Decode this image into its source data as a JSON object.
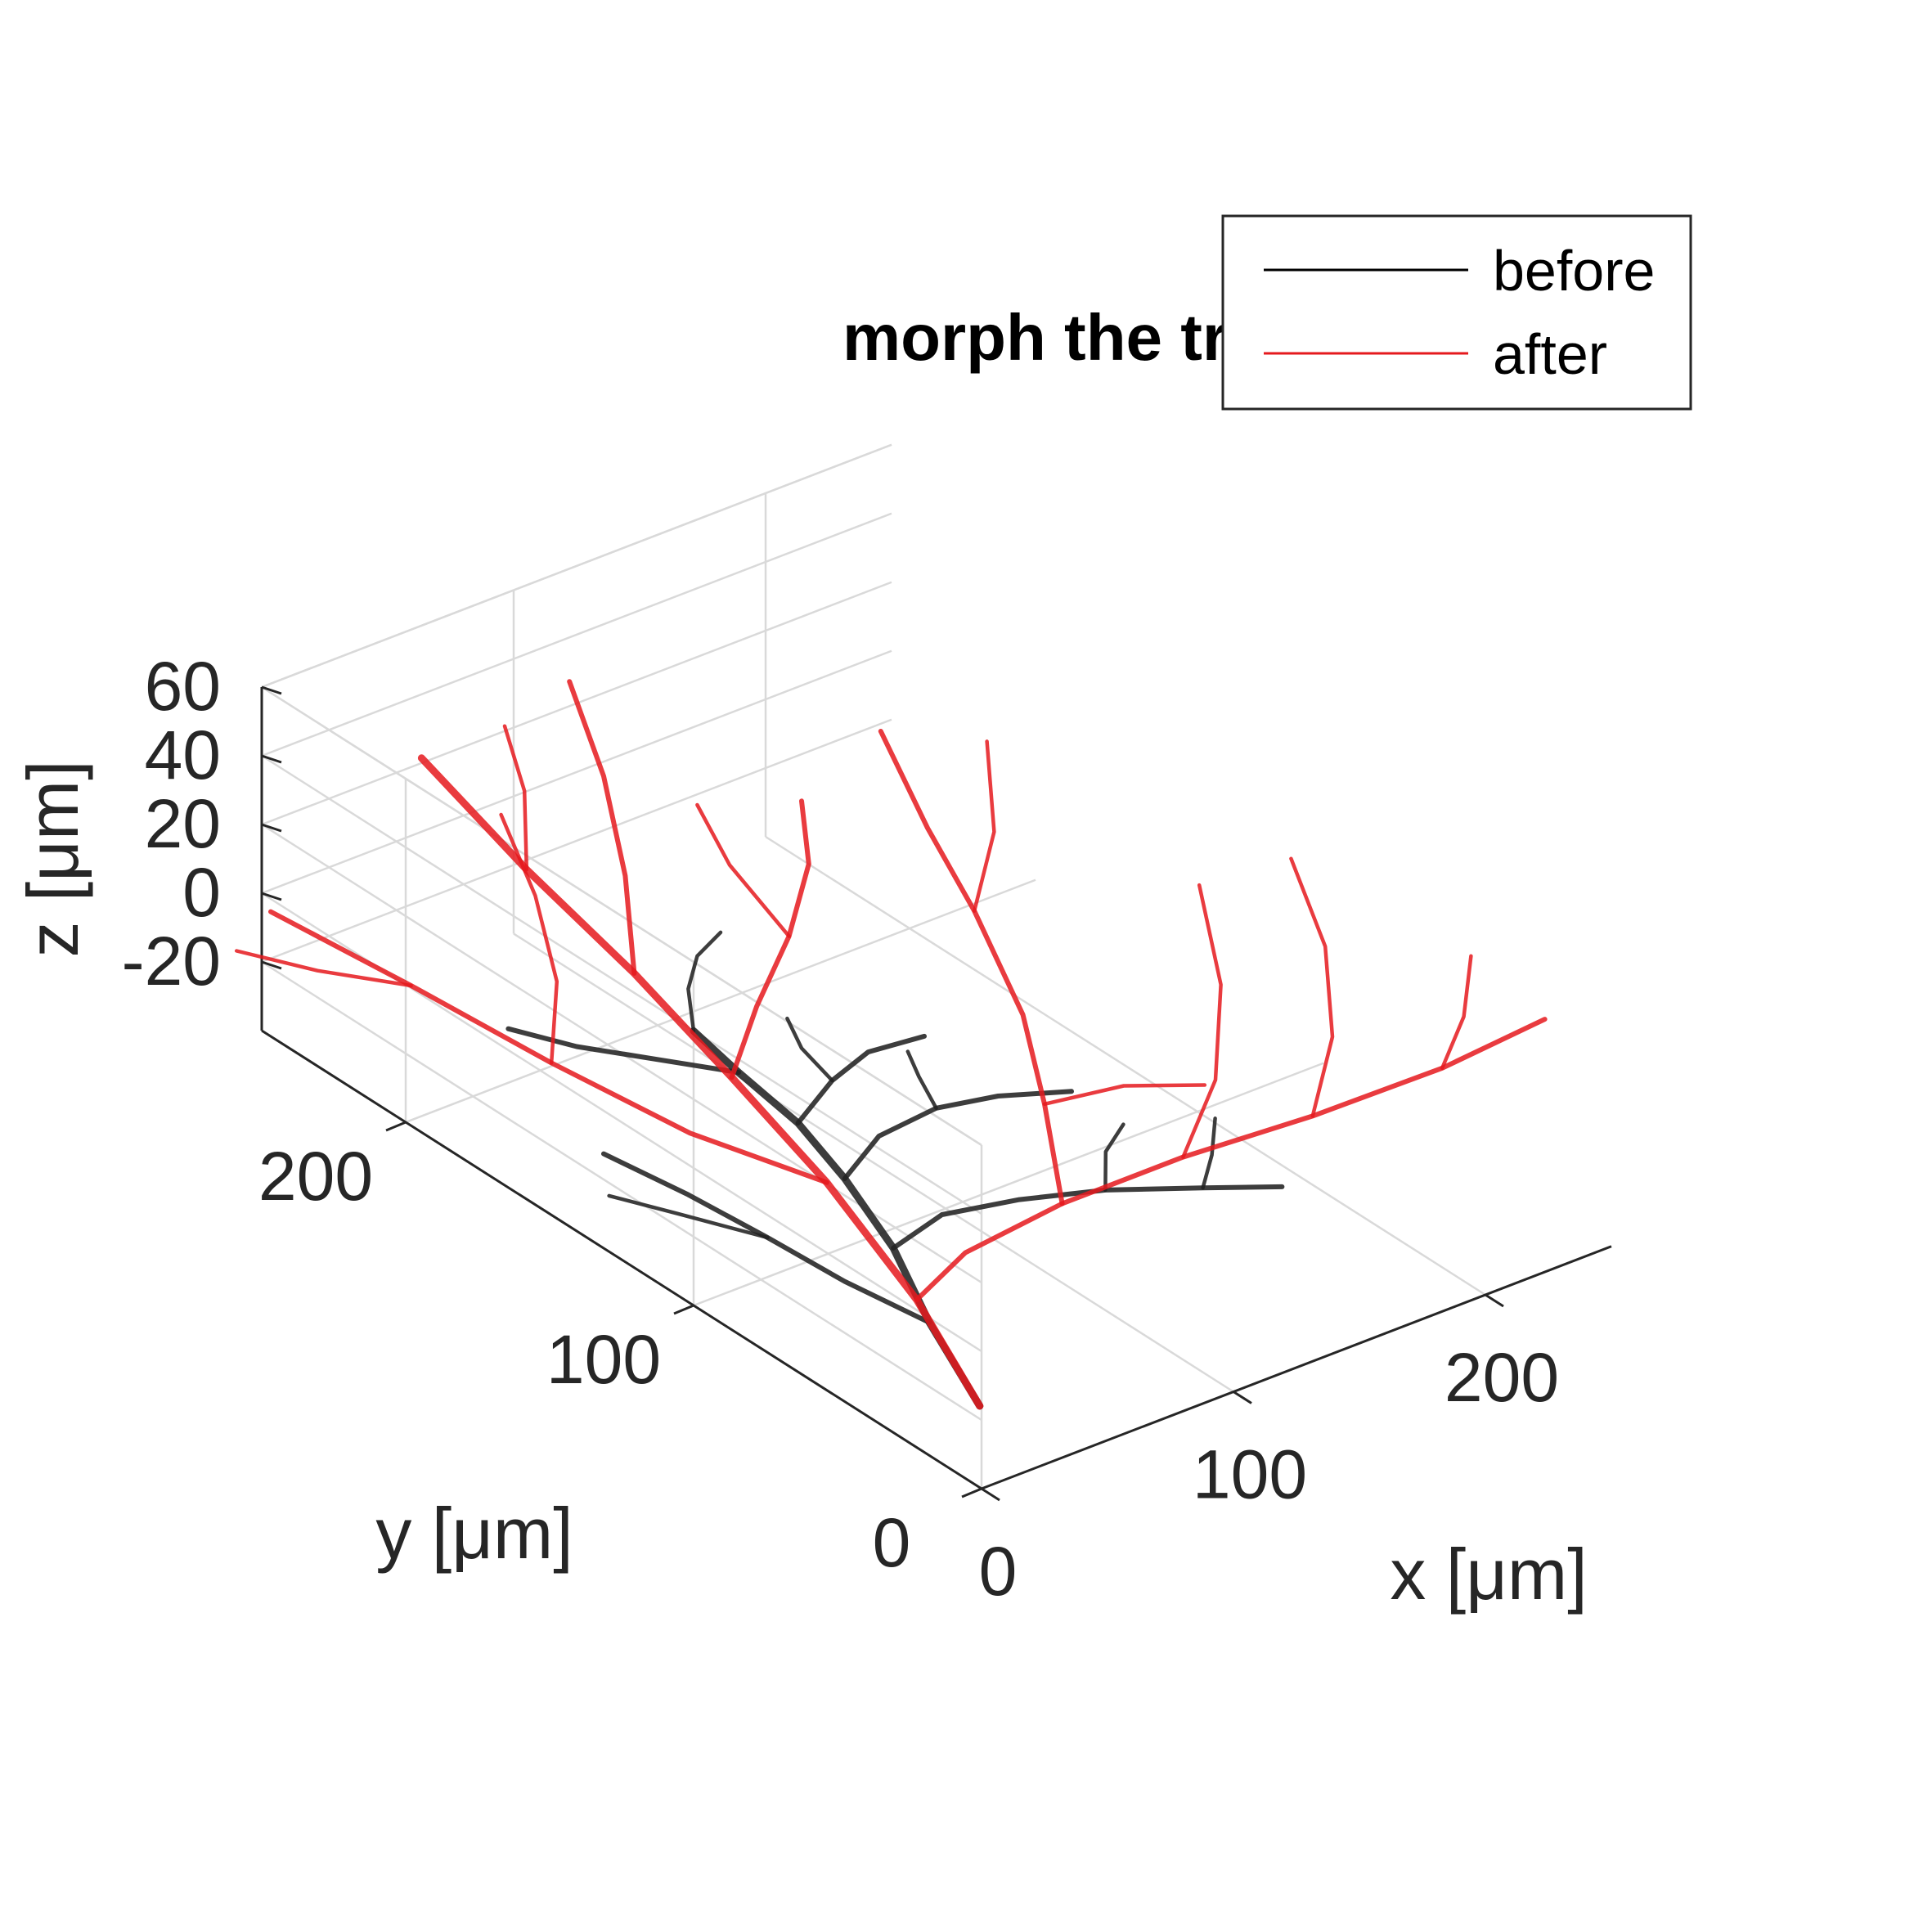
{
  "chart_data": {
    "type": "line",
    "projection": "3d",
    "title": "morph the tree",
    "xlabel": "x [μm]",
    "ylabel": "y [μm]",
    "zlabel": "z [μm]",
    "xlim": [
      0,
      250
    ],
    "ylim": [
      0,
      250
    ],
    "zlim": [
      -40,
      60
    ],
    "xticks": [
      0,
      100,
      200
    ],
    "yticks": [
      0,
      100,
      200
    ],
    "zticks": [
      -20,
      0,
      20,
      40,
      60
    ],
    "xtick_labels": [
      "0",
      "100",
      "200"
    ],
    "ytick_labels": [
      "0",
      "100",
      "200"
    ],
    "ztick_labels": [
      "-20",
      "0",
      "20",
      "40",
      "60"
    ],
    "grid": true,
    "legend_position": "top-right",
    "series": [
      {
        "name": "before",
        "color": "#222222",
        "branches": [
          [
            [
              5,
              5,
              -20
            ],
            [
              25,
              40,
              -20
            ],
            [
              45,
              70,
              -20
            ],
            [
              60,
              100,
              -20
            ],
            [
              70,
              125,
              -20
            ],
            [
              75,
              150,
              -20
            ],
            [
              80,
              170,
              -20
            ]
          ],
          [
            [
              25,
              40,
              -20
            ],
            [
              20,
              65,
              -20
            ],
            [
              18,
              90,
              -20
            ],
            [
              15,
              115,
              -20
            ],
            [
              10,
              140,
              -20
            ]
          ],
          [
            [
              45,
              70,
              -20
            ],
            [
              70,
              75,
              -20
            ],
            [
              95,
              70,
              -20
            ],
            [
              120,
              62,
              -20
            ],
            [
              145,
              50,
              -20
            ],
            [
              165,
              40,
              -20
            ]
          ],
          [
            [
              60,
              100,
              -20
            ],
            [
              85,
              110,
              -20
            ],
            [
              110,
              112,
              -20
            ],
            [
              130,
              108,
              -20
            ],
            [
              150,
              100,
              -20
            ]
          ],
          [
            [
              70,
              125,
              -20
            ],
            [
              95,
              135,
              -20
            ],
            [
              115,
              140,
              -20
            ],
            [
              135,
              138,
              -20
            ]
          ],
          [
            [
              75,
              150,
              -20
            ],
            [
              60,
              165,
              -20
            ],
            [
              45,
              180,
              -20
            ],
            [
              35,
              195,
              -20
            ]
          ],
          [
            [
              80,
              170,
              -20
            ],
            [
              95,
              185,
              -20
            ],
            [
              110,
              195,
              -20
            ],
            [
              125,
              200,
              -20
            ]
          ],
          [
            [
              18,
              90,
              -20
            ],
            [
              5,
              110,
              -20
            ],
            [
              -5,
              125,
              -20
            ]
          ],
          [
            [
              120,
              62,
              -20
            ],
            [
              135,
              75,
              -20
            ],
            [
              150,
              82,
              -20
            ]
          ],
          [
            [
              145,
              50,
              -20
            ],
            [
              160,
              60,
              -20
            ],
            [
              175,
              72,
              -20
            ]
          ],
          [
            [
              110,
              112,
              -20
            ],
            [
              118,
              125,
              -20
            ],
            [
              125,
              135,
              -20
            ]
          ],
          [
            [
              95,
              135,
              -20
            ],
            [
              100,
              150,
              -20
            ],
            [
              108,
              162,
              -20
            ]
          ]
        ]
      },
      {
        "name": "after",
        "color": "#e5191d",
        "branches": [
          [
            [
              5,
              5,
              -20
            ],
            [
              20,
              40,
              -12
            ],
            [
              30,
              80,
              -2
            ],
            [
              38,
              120,
              5
            ],
            [
              45,
              160,
              12
            ],
            [
              48,
              200,
              20
            ],
            [
              52,
              240,
              30
            ]
          ],
          [
            [
              20,
              40,
              -12
            ],
            [
              45,
              45,
              -8
            ],
            [
              80,
              42,
              -2
            ],
            [
              120,
              35,
              4
            ],
            [
              160,
              25,
              10
            ],
            [
              200,
              15,
              18
            ],
            [
              235,
              10,
              25
            ]
          ],
          [
            [
              30,
              80,
              -2
            ],
            [
              10,
              110,
              2
            ],
            [
              -5,
              145,
              8
            ],
            [
              -15,
              185,
              12
            ],
            [
              -25,
              225,
              15
            ]
          ],
          [
            [
              38,
              120,
              5
            ],
            [
              65,
              135,
              10
            ],
            [
              95,
              150,
              14
            ],
            [
              120,
              165,
              20
            ],
            [
              140,
              185,
              22
            ]
          ],
          [
            [
              45,
              160,
              12
            ],
            [
              70,
              185,
              20
            ],
            [
              90,
              210,
              30
            ],
            [
              105,
              235,
              40
            ]
          ],
          [
            [
              80,
              42,
              -2
            ],
            [
              105,
              70,
              5
            ],
            [
              125,
              95,
              12
            ],
            [
              140,
              125,
              22
            ],
            [
              150,
              150,
              30
            ],
            [
              160,
              175,
              42
            ]
          ],
          [
            [
              120,
              35,
              4
            ],
            [
              150,
              50,
              10
            ],
            [
              175,
              70,
              20
            ],
            [
              195,
              95,
              30
            ]
          ],
          [
            [
              160,
              25,
              10
            ],
            [
              185,
              40,
              18
            ],
            [
              205,
              60,
              28
            ],
            [
              220,
              85,
              36
            ]
          ],
          [
            [
              -5,
              145,
              8
            ],
            [
              20,
              165,
              14
            ],
            [
              40,
              190,
              20
            ],
            [
              55,
              215,
              26
            ]
          ],
          [
            [
              -15,
              185,
              12
            ],
            [
              -35,
              200,
              14
            ],
            [
              -50,
              215,
              16
            ]
          ],
          [
            [
              48,
              200,
              20
            ],
            [
              70,
              220,
              26
            ],
            [
              85,
              240,
              30
            ]
          ],
          [
            [
              140,
              125,
              22
            ],
            [
              165,
              140,
              30
            ],
            [
              185,
              160,
              40
            ]
          ],
          [
            [
              105,
              70,
              5
            ],
            [
              125,
              60,
              10
            ],
            [
              140,
              45,
              14
            ]
          ],
          [
            [
              95,
              150,
              14
            ],
            [
              100,
              175,
              20
            ],
            [
              110,
              195,
              24
            ]
          ],
          [
            [
              200,
              15,
              18
            ],
            [
              220,
              25,
              22
            ],
            [
              240,
              40,
              26
            ]
          ]
        ]
      }
    ]
  }
}
